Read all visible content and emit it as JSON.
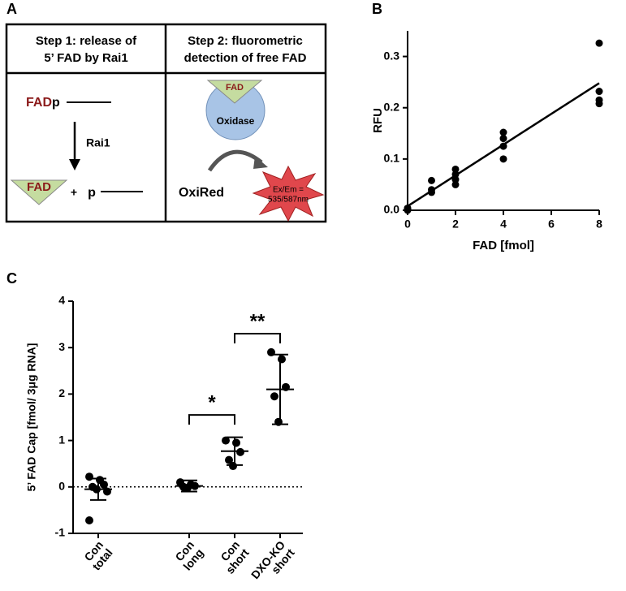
{
  "panel_labels": [
    "A",
    "B",
    "C"
  ],
  "diagram": {
    "step1_header": [
      "Step 1: release of",
      "5’ FAD by Rai1"
    ],
    "step2_header": [
      "Step 2: fluorometric",
      "detection of free FAD"
    ],
    "substrate": [
      "FAD",
      "p"
    ],
    "enzyme": "Rai1",
    "product_fad": "FAD",
    "plus": "+",
    "product_p": "p",
    "oxidase_fad": "FAD",
    "oxidase": "Oxidase",
    "probe": "OxiRed",
    "signal": [
      "Ex/Em =",
      "535/587nm"
    ]
  },
  "chart_data": [
    {
      "type": "scatter",
      "xlabel": "FAD [fmol]",
      "ylabel": "RFU",
      "x": [
        0,
        0,
        0,
        1,
        1,
        1,
        2,
        2,
        2,
        2,
        4,
        4,
        4,
        4,
        8,
        8,
        8,
        8
      ],
      "y": [
        0.0,
        0.002,
        0.004,
        0.058,
        0.04,
        0.035,
        0.08,
        0.07,
        0.06,
        0.05,
        0.152,
        0.14,
        0.125,
        0.1,
        0.326,
        0.232,
        0.215,
        0.208
      ],
      "color": "#000000",
      "fit": {
        "x": [
          0,
          8
        ],
        "values": [
          0.008,
          0.248
        ]
      },
      "xlim": [
        0,
        8
      ],
      "ylim": [
        0,
        0.35
      ],
      "xticks": [
        0,
        2,
        4,
        6,
        8
      ],
      "yticks": [
        {
          "value": 0,
          "label": "0.0"
        },
        0.1,
        0.2,
        0.3
      ]
    },
    {
      "type": "dot",
      "ylabel": "5’ FAD Cap [fmol/ 3μg RNA]",
      "categories": [
        [
          "Con",
          "total"
        ],
        null,
        [
          "Con",
          "long"
        ],
        [
          "Con",
          "short"
        ],
        [
          "DXO-KO",
          "short"
        ]
      ],
      "points": [
        [
          0.22,
          0.15,
          0.05,
          0.0,
          -0.05,
          -0.1,
          -0.72
        ],
        null,
        [
          0.1,
          0.05,
          0.02,
          0.0,
          -0.02
        ],
        [
          1.0,
          0.95,
          0.75,
          0.58,
          0.45
        ],
        [
          2.9,
          2.75,
          2.15,
          1.95,
          1.4
        ]
      ],
      "means": [
        -0.05,
        null,
        0.02,
        0.77,
        2.1
      ],
      "sd": [
        0.23,
        null,
        0.12,
        0.3,
        0.75
      ],
      "color": "#000000",
      "ylim": [
        -1,
        4
      ],
      "yticks": [
        -1,
        0,
        1,
        2,
        3,
        4
      ],
      "annotations": [
        {
          "text": "*",
          "categories": [
            2,
            3
          ],
          "y": 1.55
        },
        {
          "text": "**",
          "categories": [
            3,
            4
          ],
          "y": 3.3
        }
      ]
    }
  ]
}
